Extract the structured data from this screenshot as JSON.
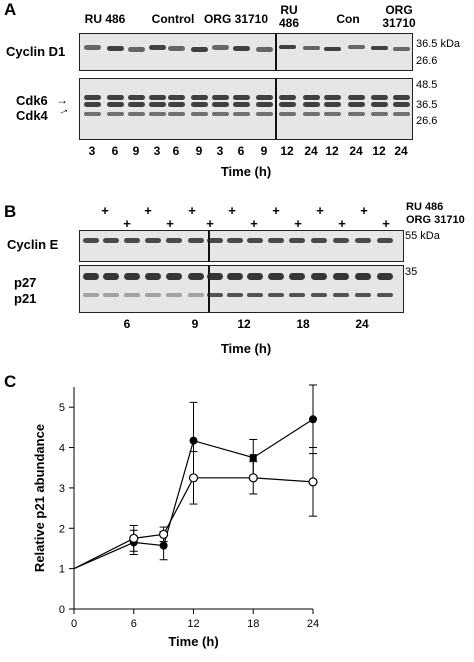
{
  "panelA": {
    "letter": "A",
    "groups": [
      {
        "label": "RU 486",
        "x": 105
      },
      {
        "label": "Control",
        "x": 173
      },
      {
        "label": "ORG 31710",
        "x": 236
      },
      {
        "label": "RU",
        "label2": "486",
        "x": 289
      },
      {
        "label": "Con",
        "x": 348
      },
      {
        "label": "ORG",
        "label2": "31710",
        "x": 399
      }
    ],
    "row1_label": "Cyclin D1",
    "row1_markers": [
      "36.5 kDa",
      "26.6"
    ],
    "row2_labels": [
      "Cdk6",
      "Cdk4"
    ],
    "row2_markers": [
      "48.5",
      "36.5",
      "26.6"
    ],
    "times": [
      "3",
      "6",
      "9",
      "3",
      "6",
      "9",
      "3",
      "6",
      "9",
      "12",
      "24",
      "12",
      "24",
      "12",
      "24"
    ],
    "xlabel": "Time (h)"
  },
  "panelB": {
    "letter": "B",
    "treat_labels": [
      "RU 486",
      "ORG 31710"
    ],
    "plus": "+",
    "row1_label": "Cyclin E",
    "row1_marker": "55 kDa",
    "row2_labels": [
      "p27",
      "p21"
    ],
    "row2_marker": "35",
    "times": [
      "6",
      "9",
      "12",
      "18",
      "24"
    ],
    "xlabel": "Time (h)"
  },
  "panelC": {
    "letter": "C",
    "chart_data": {
      "type": "line",
      "xlabel": "Time (h)",
      "ylabel": "Relative p21 abundance",
      "xlim": [
        0,
        24
      ],
      "ylim": [
        0,
        5.5
      ],
      "xticks": [
        "0",
        "6",
        "12",
        "18",
        "24"
      ],
      "yticks": [
        "0",
        "1",
        "2",
        "3",
        "4",
        "5"
      ],
      "series": [
        {
          "marker": "filled",
          "x": [
            0,
            6,
            9,
            12,
            18,
            24
          ],
          "y": [
            1.0,
            1.65,
            1.57,
            4.17,
            3.75,
            4.7
          ],
          "err": [
            0,
            0.3,
            0.35,
            0.95,
            0.45,
            0.85
          ]
        },
        {
          "marker": "open",
          "x": [
            0,
            6,
            9,
            12,
            18,
            24
          ],
          "y": [
            1.0,
            1.75,
            1.85,
            3.25,
            3.25,
            3.15
          ],
          "err": [
            0,
            0.32,
            0.18,
            0.65,
            0.4,
            0.85
          ]
        }
      ]
    }
  }
}
